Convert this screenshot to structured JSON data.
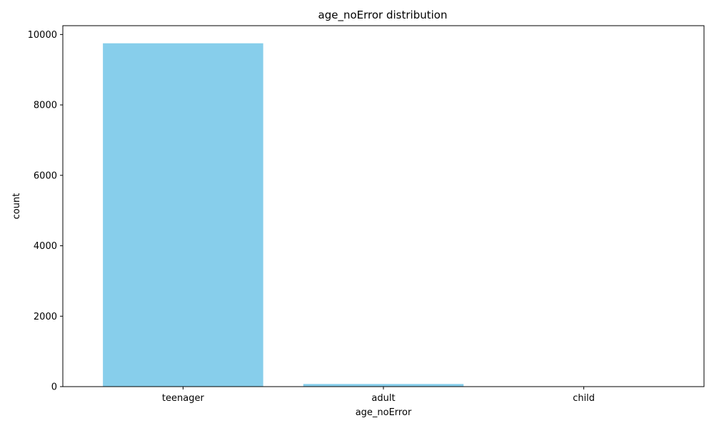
{
  "chart_data": {
    "type": "bar",
    "title": "age_noError distribution",
    "xlabel": "age_noError",
    "ylabel": "count",
    "categories": [
      "teenager",
      "adult",
      "child"
    ],
    "values": [
      9750,
      75,
      3
    ],
    "ylim": [
      0,
      10250
    ],
    "yticks": [
      0,
      2000,
      4000,
      6000,
      8000,
      10000
    ],
    "bar_color": "#87CEEB",
    "grid": false,
    "legend": "none"
  }
}
